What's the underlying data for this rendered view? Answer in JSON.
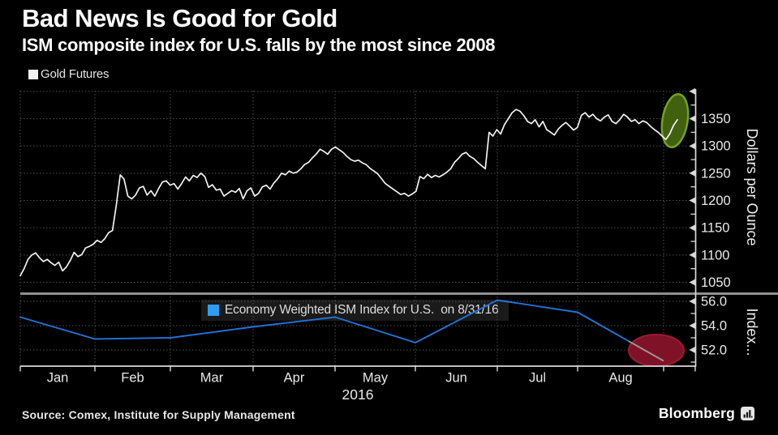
{
  "header": {
    "title": "Bad News Is Good for Gold",
    "subtitle": "ISM composite index for U.S. falls by the most since 2008"
  },
  "footer": {
    "source": "Source: Comex, Institute for Supply Management",
    "brand": "Bloomberg"
  },
  "legend_gold": {
    "label": "Gold Futures",
    "swatch_color": "#f2f2f2"
  },
  "legend_ism": {
    "label": "Economy Weighted ISM Index for U.S.  on 8/31/16",
    "swatch_color": "#2e9df3"
  },
  "colors": {
    "background": "#000000",
    "axis": "#d9d9d9",
    "grid": "#4f4f4f",
    "separator": "#8f8f8f",
    "tick_text": "#e9e9e9",
    "gold_line": "#f2f2f2",
    "ism_line": "#2273d6",
    "ism_tail": "#9a9a9a",
    "green_annotation_fill": "#42610f",
    "green_annotation_stroke": "#74a124",
    "red_annotation_fill": "#801228",
    "red_annotation_stroke": "#9c1a33"
  },
  "chart_data": [
    {
      "type": "line",
      "panel": "main",
      "title": "Gold Futures",
      "ylabel": "Dollars per Ounce",
      "yticks": [
        1050,
        1100,
        1150,
        1200,
        1250,
        1300,
        1350
      ],
      "ylim": [
        1020,
        1405
      ],
      "grid": "dotted",
      "legend_position": "top-left",
      "x_categories": [
        "Jan",
        "Feb",
        "Mar",
        "Apr",
        "May",
        "Jun",
        "Jul",
        "Aug"
      ],
      "year": "2016",
      "series": [
        {
          "name": "Gold Futures",
          "color": "#f2f2f2",
          "values": [
            1062,
            1075,
            1092,
            1100,
            1104,
            1095,
            1088,
            1092,
            1086,
            1081,
            1087,
            1071,
            1078,
            1090,
            1105,
            1097,
            1101,
            1113,
            1116,
            1120,
            1127,
            1123,
            1130,
            1141,
            1145,
            1192,
            1247,
            1239,
            1208,
            1203,
            1210,
            1223,
            1226,
            1210,
            1218,
            1208,
            1222,
            1234,
            1236,
            1228,
            1231,
            1221,
            1231,
            1243,
            1236,
            1246,
            1242,
            1250,
            1244,
            1224,
            1229,
            1219,
            1221,
            1208,
            1213,
            1218,
            1215,
            1222,
            1203,
            1218,
            1223,
            1208,
            1213,
            1225,
            1228,
            1221,
            1232,
            1240,
            1250,
            1247,
            1254,
            1250,
            1252,
            1258,
            1266,
            1270,
            1278,
            1285,
            1294,
            1290,
            1285,
            1294,
            1298,
            1293,
            1288,
            1281,
            1275,
            1272,
            1274,
            1269,
            1266,
            1259,
            1254,
            1249,
            1240,
            1231,
            1226,
            1221,
            1216,
            1211,
            1213,
            1208,
            1212,
            1217,
            1244,
            1240,
            1248,
            1242,
            1246,
            1243,
            1247,
            1252,
            1258,
            1270,
            1277,
            1285,
            1288,
            1281,
            1277,
            1270,
            1264,
            1258,
            1325,
            1318,
            1330,
            1322,
            1339,
            1350,
            1361,
            1367,
            1364,
            1356,
            1345,
            1341,
            1348,
            1335,
            1345,
            1330,
            1325,
            1320,
            1331,
            1338,
            1343,
            1336,
            1329,
            1334,
            1356,
            1361,
            1353,
            1358,
            1350,
            1346,
            1353,
            1357,
            1345,
            1341,
            1348,
            1358,
            1353,
            1345,
            1348,
            1341,
            1346,
            1343,
            1336,
            1330,
            1325,
            1318,
            1312,
            1322,
            1338,
            1348
          ]
        }
      ],
      "annotation": {
        "shape": "ellipse",
        "fill": "#42610f",
        "stroke": "#74a124",
        "note": "highlights latest upturn in gold"
      }
    },
    {
      "type": "line",
      "panel": "lower",
      "title": "Economy Weighted ISM Index for U.S.  on 8/31/16",
      "ylabel": "Index...",
      "yticks": [
        52,
        54,
        56
      ],
      "ylim": [
        50.7,
        56.4
      ],
      "grid": "dotted",
      "series": [
        {
          "name": "Economy Weighted ISM Index for U.S.",
          "color": "#2273d6",
          "month_boundary_index": [
            0,
            1,
            2,
            3,
            4,
            5,
            6,
            7,
            8
          ],
          "values": [
            54.7,
            52.9,
            53.0,
            53.9,
            54.7,
            52.6,
            56.1,
            55.1,
            51.1
          ]
        }
      ],
      "annotation": {
        "shape": "ellipse",
        "fill": "#801228",
        "stroke": "#9c1a33",
        "note": "highlights ISM plunge on 8/31/16"
      }
    }
  ]
}
